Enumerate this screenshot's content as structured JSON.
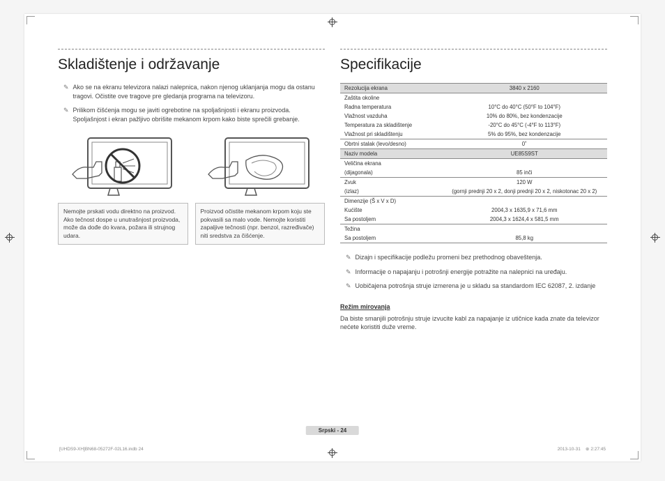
{
  "left": {
    "heading": "Skladištenje i održavanje",
    "bullets": [
      "Ako se na ekranu televizora nalazi nalepnica, nakon njenog uklanjanja mogu da ostanu tragovi. Očistite ove tragove pre gledanja programa na televizoru.",
      "Prilikom čišćenja mogu se javiti ogrebotine na spoljašnjosti i ekranu proizvoda. Spoljašnjost i ekran pažljivo obrišite mekanom krpom kako biste sprečili grebanje."
    ],
    "warn1": "Nemojte prskati vodu direktno na proizvod. Ako tečnost dospe u unutrašnjost proizvoda, može da dođe do kvara, požara ili strujnog udara.",
    "warn2": "Proizvod očistite mekanom krpom koju ste pokvasili sa malo vode. Nemojte koristiti zapaljive tečnosti (npr. benzol, razređivače) niti sredstva za čišćenje."
  },
  "right": {
    "heading": "Specifikacije",
    "rows": [
      {
        "label": "Rezolucija ekrana",
        "value": "3840 x 2160",
        "grey": true,
        "divider": true
      },
      {
        "label": "Zaštita okoline",
        "value": "",
        "divider": true
      },
      {
        "label": "Radna temperatura",
        "value": "10°C do 40°C (50°F to 104°F)"
      },
      {
        "label": "Vlažnost vazduha",
        "value": "10% do 80%, bez kondenzacije"
      },
      {
        "label": "Temperatura za skladištenje",
        "value": "-20°C do 45°C (-4°F to 113°F)"
      },
      {
        "label": "Vlažnost pri skladištenju",
        "value": "5% do 95%, bez kondenzacije"
      },
      {
        "label": "Obrtni stalak (levo/desno)",
        "value": "0˚",
        "divider": true
      },
      {
        "label": "Naziv modela",
        "value": "UE85S9ST",
        "grey": true,
        "divider": true
      },
      {
        "label": "Veličina ekrana",
        "value": "",
        "divider": true
      },
      {
        "label": "(dijagonala)",
        "value": "85 inči"
      },
      {
        "label": "Zvuk",
        "value": "120 W",
        "divider": true
      },
      {
        "label": "(izlaz)",
        "value": "(gornji prednji 20 x 2, donji prednji 20 x 2, niskotonac 20 x 2)"
      },
      {
        "label": "Dimenzije (Š x V x D)",
        "value": "",
        "divider": true
      },
      {
        "label": "Kućište",
        "value": "2004,3 x 1635,9 x 71,6 mm"
      },
      {
        "label": "Sa postoljem",
        "value": "2004,3 x 1624,4 x 581,5 mm"
      },
      {
        "label": "Težina",
        "value": "",
        "divider": true
      },
      {
        "label": "Sa postoljem",
        "value": "85,8 kg"
      },
      {
        "label": "",
        "value": "",
        "divider": true
      }
    ],
    "bullets": [
      "Dizajn i specifikacije podležu promeni bez prethodnog obaveštenja.",
      "Informacije o napajanju i potrošnji energije potražite na nalepnici na uređaju.",
      "Uobičajena potrošnja struje izmerena je u skladu sa standardom IEC 62087, 2. izdanje"
    ],
    "subhead": "Režim mirovanja",
    "para": "Da biste smanjili potrošnju struje izvucite kabl za napajanje iz utičnice kada znate da televizor nećete koristiti duže vreme."
  },
  "footer": {
    "center": "Srpski - 24",
    "left": "[UHDS9-XH]BN68-05272F-02L16.indb   24",
    "right_date": "2013-10-31",
    "right_time": "2:27:45"
  }
}
